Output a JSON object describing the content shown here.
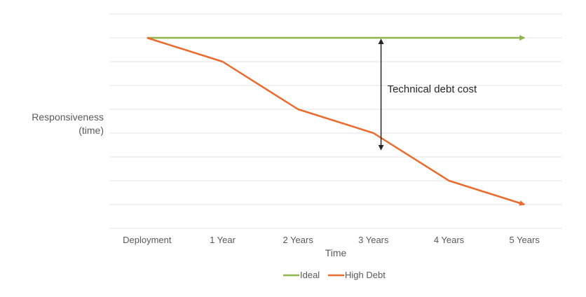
{
  "chart_data": {
    "type": "line",
    "title": "",
    "xlabel": "Time",
    "ylabel_lines": [
      "Responsiveness",
      "(time)"
    ],
    "categories": [
      "Deployment",
      "1 Year",
      "2 Years",
      "3 Years",
      "4 Years",
      "5 Years"
    ],
    "ylim": [
      0,
      9
    ],
    "gridlines": 9,
    "grid": true,
    "legend_position": "bottom",
    "series": [
      {
        "name": "Ideal",
        "values": [
          8,
          8,
          8,
          8,
          8,
          8
        ],
        "color": "#8db34a"
      },
      {
        "name": "High Debt",
        "values": [
          8,
          7,
          5,
          4,
          2,
          1
        ],
        "color": "#ea6b2d"
      }
    ],
    "annotations": [
      {
        "text": "Technical debt cost",
        "category_index": 3.6,
        "y_from": 8,
        "y_to": 3.3,
        "color": "#262626"
      }
    ],
    "gridline_color": "#e3e3e3"
  }
}
